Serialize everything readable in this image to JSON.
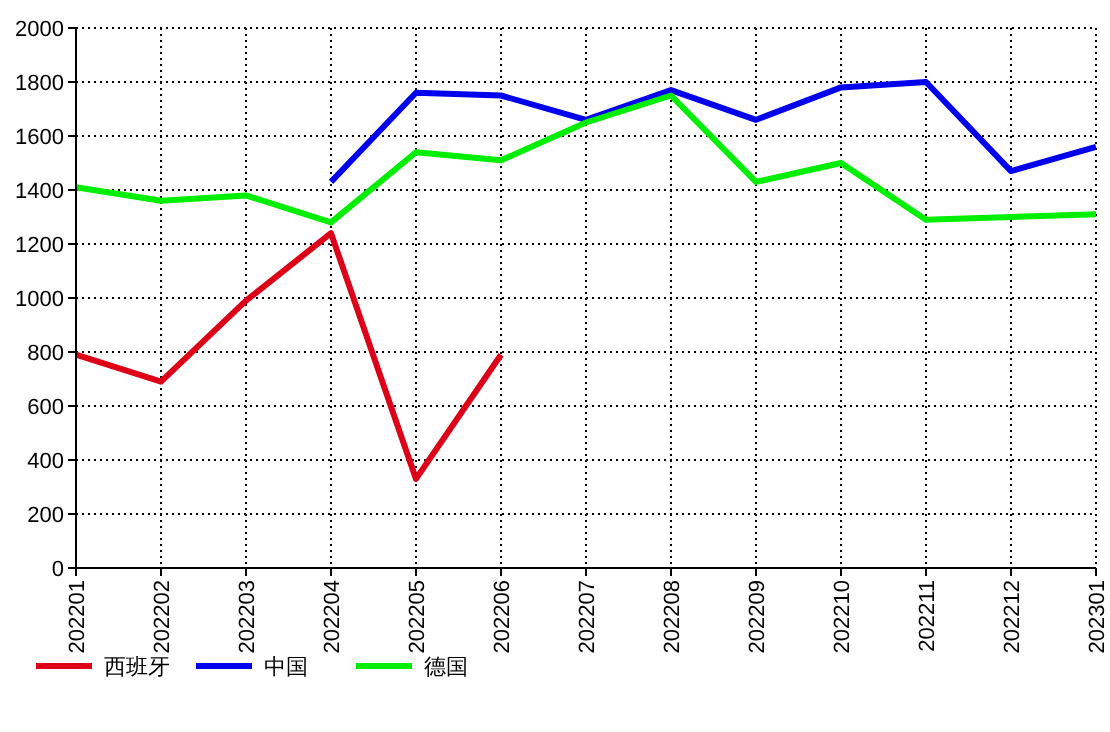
{
  "chart_data": {
    "type": "line",
    "categories": [
      "202201",
      "202202",
      "202203",
      "202204",
      "202205",
      "202206",
      "202207",
      "202208",
      "202209",
      "202210",
      "202211",
      "202212",
      "202301"
    ],
    "series": [
      {
        "name": "西班牙",
        "color": "#dd0016",
        "values": [
          790,
          690,
          990,
          1240,
          330,
          790,
          null,
          null,
          null,
          null,
          null,
          null,
          null
        ]
      },
      {
        "name": "中国",
        "color": "#0000ee",
        "values": [
          null,
          null,
          null,
          1430,
          1760,
          1750,
          1660,
          1770,
          1660,
          1780,
          1800,
          1470,
          1560
        ]
      },
      {
        "name": "德国",
        "color": "#00ee00",
        "values": [
          1410,
          1360,
          1380,
          1280,
          1540,
          1510,
          1650,
          1750,
          1430,
          1500,
          1290,
          1300,
          1310
        ]
      }
    ],
    "ylim": [
      0,
      2000
    ],
    "yticks": [
      0,
      200,
      400,
      600,
      800,
      1000,
      1200,
      1400,
      1600,
      1800,
      2000
    ],
    "grid": true,
    "legend": "bottom left",
    "line_style": "solid",
    "marker": "none"
  }
}
